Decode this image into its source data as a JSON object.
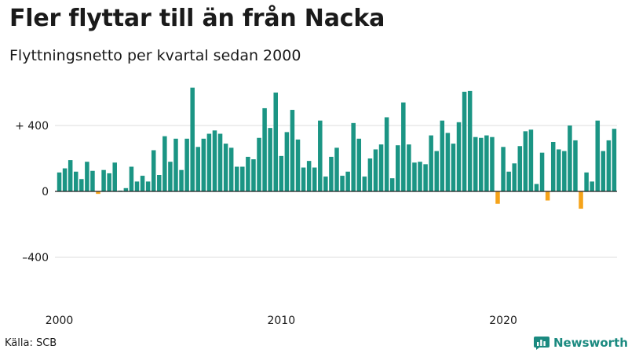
{
  "title": "Fler flyttar till än från Nacka",
  "subtitle": "Flyttningsnetto per kvartal sedan 2000",
  "source": "Källa: SCB",
  "brand": "Newsworthy",
  "colors": {
    "positive": "#1b9584",
    "negative": "#f5a31a",
    "grid": "#dcdcdc",
    "zero": "#222222",
    "brand": "#1b8a80"
  },
  "chart_data": {
    "type": "bar",
    "title": "Fler flyttar till än från Nacka",
    "subtitle": "Flyttningsnetto per kvartal sedan 2000",
    "xlabel": "",
    "ylabel": "",
    "ylim": [
      -680,
      640
    ],
    "y_ticks": [
      {
        "value": 400,
        "label": "+ 400"
      },
      {
        "value": 0,
        "label": "0"
      },
      {
        "value": -400,
        "label": "–400"
      }
    ],
    "x_ticks": [
      {
        "index": 0,
        "label": "2000"
      },
      {
        "index": 40,
        "label": "2010"
      },
      {
        "index": 80,
        "label": "2020"
      }
    ],
    "start": "2000 Q1",
    "values": [
      115,
      140,
      190,
      120,
      75,
      180,
      125,
      -15,
      130,
      110,
      175,
      5,
      20,
      150,
      60,
      95,
      60,
      250,
      100,
      335,
      180,
      320,
      130,
      320,
      630,
      270,
      320,
      350,
      370,
      350,
      290,
      265,
      150,
      150,
      210,
      195,
      325,
      505,
      385,
      600,
      215,
      360,
      495,
      315,
      145,
      185,
      145,
      430,
      90,
      210,
      265,
      95,
      120,
      415,
      320,
      90,
      200,
      255,
      285,
      450,
      80,
      280,
      540,
      285,
      175,
      180,
      165,
      340,
      245,
      430,
      355,
      290,
      420,
      605,
      610,
      330,
      325,
      340,
      330,
      -75,
      270,
      120,
      170,
      275,
      365,
      375,
      45,
      235,
      -55,
      300,
      255,
      245,
      400,
      310,
      -105,
      115,
      60,
      430,
      245,
      310,
      380
    ]
  }
}
